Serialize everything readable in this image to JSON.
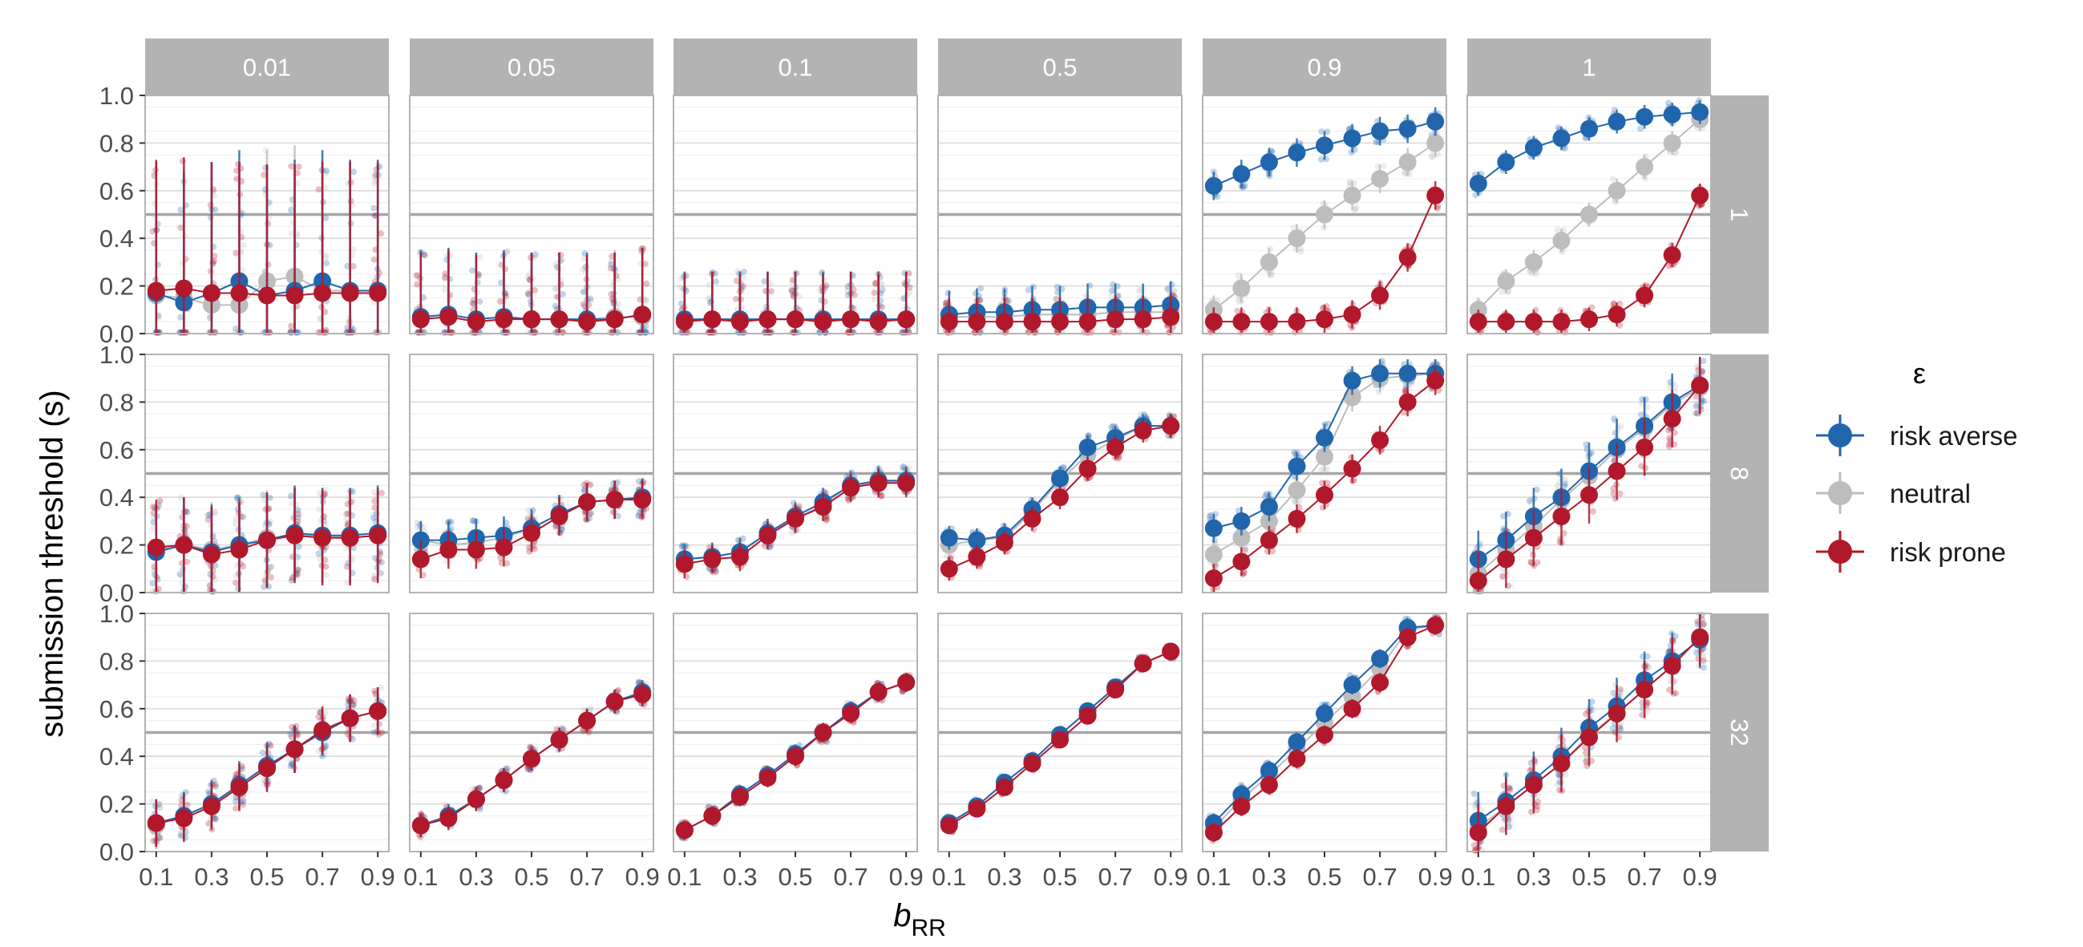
{
  "chart_data": {
    "type": "scatter",
    "ylabel": "submission threshold (s)",
    "xlabel_main": "b",
    "xlabel_sub": "RR",
    "column_facets": [
      "0.01",
      "0.05",
      "0.1",
      "0.5",
      "0.9",
      "1"
    ],
    "row_facets": [
      "1",
      "8",
      "32"
    ],
    "reference_line_y": 0.5,
    "x_values": [
      0.1,
      0.2,
      0.3,
      0.4,
      0.5,
      0.6,
      0.7,
      0.8,
      0.9
    ],
    "x_tick_labels": [
      "0.1",
      "0.3",
      "0.5",
      "0.7",
      "0.9"
    ],
    "x_ticks": [
      0.1,
      0.3,
      0.5,
      0.7,
      0.9
    ],
    "xlim": [
      0.06,
      0.94
    ],
    "y_ticks": [
      0.0,
      0.2,
      0.4,
      0.6,
      0.8,
      1.0
    ],
    "y_tick_labels": [
      "0.0",
      "0.2",
      "0.4",
      "0.6",
      "0.8",
      "1.0"
    ],
    "ylim": [
      0.0,
      1.0
    ],
    "grid": true,
    "legend": {
      "title": "ε",
      "position": "right",
      "entries": [
        {
          "label": "risk averse",
          "color": "#2166ac"
        },
        {
          "label": "neutral",
          "color": "#bdbdbd"
        },
        {
          "label": "risk prone",
          "color": "#b2182b"
        }
      ]
    },
    "series_order": [
      "neutral",
      "risk_averse",
      "risk_prone"
    ],
    "series_colors": {
      "risk_averse": "#2166ac",
      "neutral": "#bdbdbd",
      "risk_prone": "#b2182b"
    },
    "panels": [
      [
        {
          "risk_averse": [
            0.17,
            0.13,
            0.17,
            0.22,
            0.16,
            0.18,
            0.22,
            0.18,
            0.18
          ],
          "neutral": [
            0.16,
            0.15,
            0.12,
            0.12,
            0.22,
            0.24,
            0.18,
            0.18,
            0.18
          ],
          "risk_prone": [
            0.18,
            0.19,
            0.17,
            0.17,
            0.16,
            0.16,
            0.17,
            0.17,
            0.17
          ],
          "spread": [
            0.0,
            0.55
          ]
        },
        {
          "risk_averse": [
            0.07,
            0.08,
            0.06,
            0.07,
            0.06,
            0.06,
            0.06,
            0.06,
            0.08
          ],
          "neutral": [
            0.07,
            0.08,
            0.06,
            0.07,
            0.06,
            0.06,
            0.06,
            0.07,
            0.07
          ],
          "risk_prone": [
            0.06,
            0.07,
            0.05,
            0.06,
            0.06,
            0.06,
            0.05,
            0.06,
            0.08
          ],
          "spread": [
            0.0,
            0.28
          ]
        },
        {
          "risk_averse": [
            0.06,
            0.06,
            0.06,
            0.06,
            0.06,
            0.06,
            0.06,
            0.06,
            0.06
          ],
          "neutral": [
            0.06,
            0.06,
            0.06,
            0.06,
            0.06,
            0.06,
            0.06,
            0.06,
            0.06
          ],
          "risk_prone": [
            0.05,
            0.06,
            0.05,
            0.06,
            0.06,
            0.05,
            0.06,
            0.05,
            0.06
          ],
          "spread": [
            0.0,
            0.2
          ]
        },
        {
          "risk_averse": [
            0.08,
            0.09,
            0.09,
            0.1,
            0.1,
            0.11,
            0.11,
            0.11,
            0.12
          ],
          "neutral": [
            0.07,
            0.07,
            0.07,
            0.08,
            0.08,
            0.08,
            0.09,
            0.09,
            0.09
          ],
          "risk_prone": [
            0.05,
            0.05,
            0.05,
            0.05,
            0.05,
            0.05,
            0.06,
            0.06,
            0.07
          ],
          "spread": [
            0.0,
            0.1
          ]
        },
        {
          "risk_averse": [
            0.62,
            0.67,
            0.72,
            0.76,
            0.79,
            0.82,
            0.85,
            0.86,
            0.89
          ],
          "neutral": [
            0.1,
            0.19,
            0.3,
            0.4,
            0.5,
            0.58,
            0.65,
            0.72,
            0.8
          ],
          "risk_prone": [
            0.05,
            0.05,
            0.05,
            0.05,
            0.06,
            0.08,
            0.16,
            0.32,
            0.58
          ],
          "spread": [
            0.0,
            0.06
          ]
        },
        {
          "risk_averse": [
            0.63,
            0.72,
            0.78,
            0.82,
            0.86,
            0.89,
            0.91,
            0.92,
            0.93
          ],
          "neutral": [
            0.1,
            0.22,
            0.3,
            0.39,
            0.5,
            0.6,
            0.7,
            0.8,
            0.9
          ],
          "risk_prone": [
            0.05,
            0.05,
            0.05,
            0.05,
            0.06,
            0.08,
            0.16,
            0.33,
            0.58
          ],
          "spread": [
            0.0,
            0.05
          ]
        }
      ],
      [
        {
          "risk_averse": [
            0.17,
            0.2,
            0.17,
            0.2,
            0.22,
            0.25,
            0.24,
            0.24,
            0.25
          ],
          "neutral": [
            0.18,
            0.2,
            0.18,
            0.2,
            0.23,
            0.24,
            0.24,
            0.23,
            0.24
          ],
          "risk_prone": [
            0.19,
            0.2,
            0.16,
            0.18,
            0.22,
            0.24,
            0.23,
            0.23,
            0.24
          ],
          "spread": [
            0.0,
            0.2
          ]
        },
        {
          "risk_averse": [
            0.22,
            0.22,
            0.23,
            0.24,
            0.27,
            0.33,
            0.38,
            0.39,
            0.4
          ],
          "neutral": [
            0.22,
            0.2,
            0.21,
            0.23,
            0.27,
            0.33,
            0.38,
            0.39,
            0.4
          ],
          "risk_prone": [
            0.14,
            0.18,
            0.18,
            0.19,
            0.25,
            0.32,
            0.38,
            0.39,
            0.39
          ],
          "spread": [
            0.0,
            0.08
          ]
        },
        {
          "risk_averse": [
            0.14,
            0.15,
            0.17,
            0.25,
            0.32,
            0.38,
            0.45,
            0.47,
            0.47
          ],
          "neutral": [
            0.14,
            0.15,
            0.17,
            0.25,
            0.31,
            0.37,
            0.45,
            0.46,
            0.47
          ],
          "risk_prone": [
            0.12,
            0.14,
            0.15,
            0.24,
            0.31,
            0.36,
            0.44,
            0.46,
            0.46
          ],
          "spread": [
            0.0,
            0.06
          ]
        },
        {
          "risk_averse": [
            0.23,
            0.22,
            0.24,
            0.35,
            0.48,
            0.61,
            0.65,
            0.7,
            0.7
          ],
          "neutral": [
            0.2,
            0.22,
            0.23,
            0.34,
            0.47,
            0.58,
            0.64,
            0.7,
            0.7
          ],
          "risk_prone": [
            0.1,
            0.15,
            0.21,
            0.31,
            0.4,
            0.52,
            0.61,
            0.68,
            0.7
          ],
          "spread": [
            0.0,
            0.05
          ]
        },
        {
          "risk_averse": [
            0.27,
            0.3,
            0.36,
            0.53,
            0.65,
            0.89,
            0.92,
            0.92,
            0.92
          ],
          "neutral": [
            0.16,
            0.23,
            0.3,
            0.43,
            0.57,
            0.82,
            0.9,
            0.91,
            0.92
          ],
          "risk_prone": [
            0.06,
            0.13,
            0.22,
            0.31,
            0.41,
            0.52,
            0.64,
            0.8,
            0.89
          ],
          "spread": [
            0.0,
            0.06
          ]
        },
        {
          "risk_averse": [
            0.14,
            0.22,
            0.32,
            0.4,
            0.51,
            0.61,
            0.7,
            0.8,
            0.87
          ],
          "neutral": [
            0.08,
            0.18,
            0.28,
            0.39,
            0.49,
            0.6,
            0.69,
            0.79,
            0.86
          ],
          "risk_prone": [
            0.05,
            0.14,
            0.23,
            0.32,
            0.41,
            0.51,
            0.61,
            0.73,
            0.87
          ],
          "spread": [
            0.0,
            0.12
          ]
        }
      ],
      [
        {
          "risk_averse": [
            0.12,
            0.15,
            0.2,
            0.28,
            0.36,
            0.43,
            0.5,
            0.56,
            0.59
          ],
          "neutral": [
            0.11,
            0.15,
            0.2,
            0.27,
            0.35,
            0.43,
            0.5,
            0.56,
            0.59
          ],
          "risk_prone": [
            0.12,
            0.14,
            0.19,
            0.27,
            0.35,
            0.43,
            0.51,
            0.56,
            0.59
          ],
          "spread": [
            0.0,
            0.1
          ]
        },
        {
          "risk_averse": [
            0.11,
            0.15,
            0.22,
            0.3,
            0.39,
            0.47,
            0.55,
            0.63,
            0.67
          ],
          "neutral": [
            0.11,
            0.15,
            0.22,
            0.3,
            0.39,
            0.47,
            0.55,
            0.63,
            0.67
          ],
          "risk_prone": [
            0.11,
            0.14,
            0.22,
            0.3,
            0.39,
            0.47,
            0.55,
            0.63,
            0.66
          ],
          "spread": [
            0.0,
            0.05
          ]
        },
        {
          "risk_averse": [
            0.09,
            0.15,
            0.24,
            0.32,
            0.41,
            0.5,
            0.59,
            0.67,
            0.71
          ],
          "neutral": [
            0.09,
            0.15,
            0.24,
            0.32,
            0.41,
            0.5,
            0.59,
            0.67,
            0.71
          ],
          "risk_prone": [
            0.09,
            0.15,
            0.23,
            0.31,
            0.4,
            0.5,
            0.58,
            0.67,
            0.71
          ],
          "spread": [
            0.0,
            0.04
          ]
        },
        {
          "risk_averse": [
            0.12,
            0.19,
            0.29,
            0.38,
            0.49,
            0.59,
            0.69,
            0.79,
            0.84
          ],
          "neutral": [
            0.12,
            0.19,
            0.29,
            0.38,
            0.49,
            0.59,
            0.69,
            0.79,
            0.84
          ],
          "risk_prone": [
            0.11,
            0.18,
            0.27,
            0.37,
            0.47,
            0.57,
            0.68,
            0.79,
            0.84
          ],
          "spread": [
            0.0,
            0.03
          ]
        },
        {
          "risk_averse": [
            0.12,
            0.24,
            0.34,
            0.46,
            0.58,
            0.7,
            0.81,
            0.94,
            0.95
          ],
          "neutral": [
            0.1,
            0.22,
            0.32,
            0.43,
            0.54,
            0.65,
            0.77,
            0.93,
            0.95
          ],
          "risk_prone": [
            0.08,
            0.19,
            0.28,
            0.39,
            0.49,
            0.6,
            0.71,
            0.9,
            0.95
          ],
          "spread": [
            0.0,
            0.04
          ]
        },
        {
          "risk_averse": [
            0.13,
            0.21,
            0.3,
            0.4,
            0.52,
            0.61,
            0.72,
            0.8,
            0.89
          ],
          "neutral": [
            0.1,
            0.19,
            0.28,
            0.37,
            0.49,
            0.58,
            0.68,
            0.78,
            0.9
          ],
          "risk_prone": [
            0.08,
            0.19,
            0.28,
            0.37,
            0.48,
            0.58,
            0.68,
            0.78,
            0.9
          ],
          "spread": [
            0.0,
            0.12
          ]
        }
      ]
    ]
  }
}
